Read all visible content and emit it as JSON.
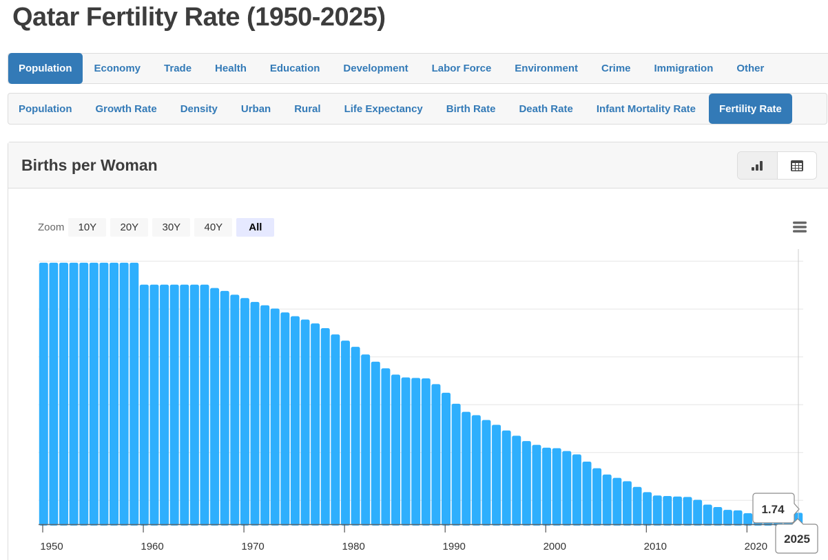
{
  "page": {
    "title": "Qatar Fertility Rate (1950-2025)"
  },
  "nav_primary": {
    "items": [
      {
        "label": "Population",
        "active": true
      },
      {
        "label": "Economy",
        "active": false
      },
      {
        "label": "Trade",
        "active": false
      },
      {
        "label": "Health",
        "active": false
      },
      {
        "label": "Education",
        "active": false
      },
      {
        "label": "Development",
        "active": false
      },
      {
        "label": "Labor Force",
        "active": false
      },
      {
        "label": "Environment",
        "active": false
      },
      {
        "label": "Crime",
        "active": false
      },
      {
        "label": "Immigration",
        "active": false
      },
      {
        "label": "Other",
        "active": false
      }
    ]
  },
  "nav_secondary": {
    "items": [
      {
        "label": "Population",
        "active": false
      },
      {
        "label": "Growth Rate",
        "active": false
      },
      {
        "label": "Density",
        "active": false
      },
      {
        "label": "Urban",
        "active": false
      },
      {
        "label": "Rural",
        "active": false
      },
      {
        "label": "Life Expectancy",
        "active": false
      },
      {
        "label": "Birth Rate",
        "active": false
      },
      {
        "label": "Death Rate",
        "active": false
      },
      {
        "label": "Infant Mortality Rate",
        "active": false
      },
      {
        "label": "Fertility Rate",
        "active": true
      }
    ]
  },
  "panel": {
    "title": "Births per Woman",
    "view_toggle": {
      "chart_icon": "bar-chart-icon",
      "table_icon": "table-icon",
      "active": "chart"
    }
  },
  "zoom": {
    "label": "Zoom",
    "options": [
      {
        "label": "10Y",
        "active": false
      },
      {
        "label": "20Y",
        "active": false
      },
      {
        "label": "30Y",
        "active": false
      },
      {
        "label": "40Y",
        "active": false
      },
      {
        "label": "All",
        "active": true
      }
    ]
  },
  "menu_icon": "hamburger-menu-icon",
  "chart_data": {
    "type": "bar",
    "title": "Births per Woman",
    "xlabel": "",
    "ylabel": "",
    "grid": true,
    "ylim": [
      1.5,
      7.5
    ],
    "y_gridlines": [
      2,
      3,
      4,
      5,
      6,
      7
    ],
    "x_tick_labels": [
      "1950",
      "1960",
      "1970",
      "1980",
      "1990",
      "2000",
      "2010",
      "2020"
    ],
    "bar_color": "#2eaffd",
    "categories": [
      1950,
      1951,
      1952,
      1953,
      1954,
      1955,
      1956,
      1957,
      1958,
      1959,
      1960,
      1961,
      1962,
      1963,
      1964,
      1965,
      1966,
      1967,
      1968,
      1969,
      1970,
      1971,
      1972,
      1973,
      1974,
      1975,
      1976,
      1977,
      1978,
      1979,
      1980,
      1981,
      1982,
      1983,
      1984,
      1985,
      1986,
      1987,
      1988,
      1989,
      1990,
      1991,
      1992,
      1993,
      1994,
      1995,
      1996,
      1997,
      1998,
      1999,
      2000,
      2001,
      2002,
      2003,
      2004,
      2005,
      2006,
      2007,
      2008,
      2009,
      2010,
      2011,
      2012,
      2013,
      2014,
      2015,
      2016,
      2017,
      2018,
      2019,
      2020,
      2021,
      2022,
      2023,
      2024,
      2025
    ],
    "values": [
      6.97,
      6.97,
      6.97,
      6.97,
      6.97,
      6.97,
      6.97,
      6.97,
      6.97,
      6.97,
      6.51,
      6.51,
      6.51,
      6.51,
      6.51,
      6.51,
      6.51,
      6.44,
      6.38,
      6.3,
      6.23,
      6.15,
      6.08,
      6.01,
      5.93,
      5.85,
      5.78,
      5.7,
      5.6,
      5.47,
      5.34,
      5.21,
      5.05,
      4.9,
      4.76,
      4.63,
      4.57,
      4.56,
      4.55,
      4.43,
      4.25,
      4.02,
      3.85,
      3.78,
      3.68,
      3.58,
      3.46,
      3.35,
      3.24,
      3.16,
      3.1,
      3.09,
      3.03,
      2.96,
      2.81,
      2.67,
      2.54,
      2.47,
      2.4,
      2.28,
      2.17,
      2.1,
      2.09,
      2.08,
      2.07,
      2.01,
      1.91,
      1.86,
      1.8,
      1.79,
      1.73,
      1.72,
      1.72,
      1.73,
      1.73,
      1.74
    ],
    "tooltip": {
      "value": "1.74",
      "year": "2025"
    }
  }
}
